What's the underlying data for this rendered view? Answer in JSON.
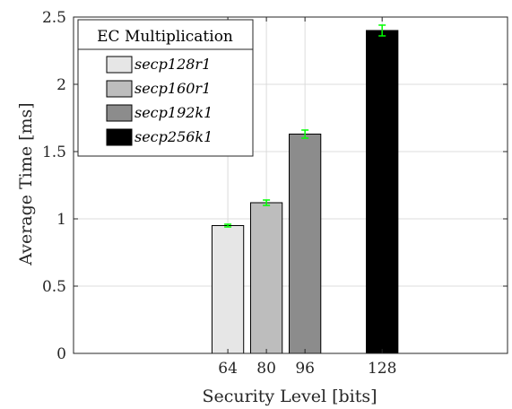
{
  "chart_data": {
    "type": "bar",
    "xlabel": "Security Level [bits]",
    "ylabel": "Average Time [ms]",
    "ylim": [
      0,
      2.5
    ],
    "yticks": [
      0,
      0.5,
      1,
      1.5,
      2,
      2.5
    ],
    "ytick_labels": [
      "0",
      "0.5",
      "1",
      "1.5",
      "2",
      "2.5"
    ],
    "xlim": [
      0,
      180
    ],
    "grid": true,
    "legend_title": "EC Multiplication",
    "legend_position": "top-left",
    "categories": [
      "64",
      "80",
      "96",
      "128"
    ],
    "x_positions": [
      64,
      80,
      96,
      128
    ],
    "series": [
      {
        "name": "secp128r1",
        "x": 64,
        "value": 0.95,
        "error": 0.01,
        "color": "#e6e6e6"
      },
      {
        "name": "secp160r1",
        "x": 80,
        "value": 1.12,
        "error": 0.02,
        "color": "#bdbdbd"
      },
      {
        "name": "secp192k1",
        "x": 96,
        "value": 1.63,
        "error": 0.03,
        "color": "#8c8c8c"
      },
      {
        "name": "secp256k1",
        "x": 128,
        "value": 2.4,
        "error": 0.04,
        "color": "#000000"
      }
    ],
    "error_bar_color": "#00ff00"
  }
}
